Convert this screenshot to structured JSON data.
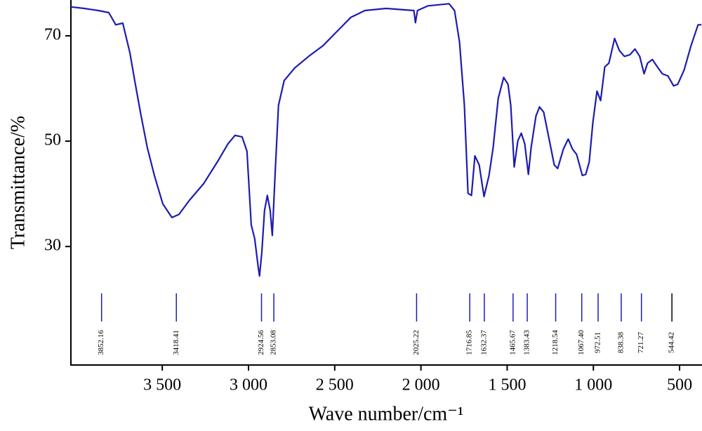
{
  "chart_data": {
    "type": "line",
    "xlabel": "Wave number/cm⁻¹",
    "ylabel": "Transmittance/%",
    "xlim": [
      4030,
      370
    ],
    "ylim": [
      7.5,
      76.8
    ],
    "xticks": [
      {
        "value": 3500,
        "label": "3 500"
      },
      {
        "value": 3000,
        "label": "3 000"
      },
      {
        "value": 2500,
        "label": "2 500"
      },
      {
        "value": 2000,
        "label": "2 000"
      },
      {
        "value": 1500,
        "label": "1 500"
      },
      {
        "value": 1000,
        "label": "1 000"
      },
      500
    ],
    "yticks": [
      30,
      50,
      70
    ],
    "color": "#1c1cb0",
    "x": [
      4030,
      3953,
      3871,
      3810,
      3770,
      3729,
      3688,
      3660,
      3627,
      3587,
      3546,
      3497,
      3444,
      3403,
      3342,
      3261,
      3180,
      3119,
      3078,
      3037,
      3009,
      2984,
      2964,
      2944,
      2936,
      2923,
      2907,
      2891,
      2874,
      2862,
      2846,
      2826,
      2793,
      2732,
      2651,
      2569,
      2488,
      2407,
      2325,
      2203,
      2041,
      2032,
      2020,
      1959,
      1837,
      1805,
      1776,
      1748,
      1727,
      1707,
      1687,
      1662,
      1634,
      1605,
      1581,
      1552,
      1520,
      1495,
      1479,
      1459,
      1438,
      1418,
      1398,
      1377,
      1361,
      1333,
      1312,
      1288,
      1259,
      1227,
      1207,
      1174,
      1146,
      1121,
      1097,
      1064,
      1044,
      1024,
      1003,
      979,
      958,
      934,
      910,
      877,
      849,
      820,
      788,
      759,
      731,
      706,
      686,
      658,
      629,
      600,
      568,
      535,
      511,
      474,
      434,
      393,
      373
    ],
    "y": [
      75.5,
      75.2,
      74.8,
      74.4,
      72.1,
      72.4,
      66.8,
      61.5,
      55.5,
      48.8,
      43.5,
      38.1,
      35.5,
      36.1,
      38.8,
      41.9,
      46.1,
      49.5,
      51.1,
      50.8,
      48.1,
      34.1,
      31.5,
      26.1,
      24.4,
      28.8,
      36.8,
      39.7,
      36.8,
      32.1,
      43.5,
      56.8,
      61.5,
      63.9,
      66.1,
      68.1,
      70.8,
      73.5,
      74.8,
      75.2,
      74.8,
      72.5,
      74.8,
      75.7,
      76.1,
      74.8,
      68.8,
      56.8,
      40.1,
      39.7,
      47.2,
      45.5,
      39.5,
      43.5,
      48.8,
      58.1,
      62.1,
      60.8,
      56.8,
      45.1,
      50.1,
      51.5,
      49.5,
      43.7,
      48.8,
      54.8,
      56.5,
      55.5,
      50.8,
      45.5,
      44.8,
      48.5,
      50.4,
      48.5,
      47.5,
      43.5,
      43.7,
      46.1,
      53.5,
      59.5,
      57.7,
      64.1,
      64.8,
      69.5,
      67.2,
      66.1,
      66.4,
      67.5,
      66.1,
      62.8,
      64.8,
      65.5,
      64.1,
      62.8,
      62.4,
      60.5,
      60.8,
      63.5,
      68.1,
      72.1,
      72.1
    ],
    "peaks": [
      3852.16,
      3418.41,
      2924.56,
      2853.08,
      2025.22,
      1716.85,
      1632.37,
      1465.67,
      1383.43,
      1218.54,
      1067.4,
      972.51,
      838.38,
      721.27,
      544.42
    ],
    "peak_labels": [
      "3852.16",
      "3418.41",
      "2924.56",
      "2853.08",
      "2025.22",
      "1716.85",
      "1632.37",
      "1465.67",
      "1383.43",
      "1218.54",
      "1067.40",
      "972.51",
      "838.38",
      "721.27",
      "544.42"
    ],
    "peak_colors": [
      "#1c1cb0",
      "#1c1cb0",
      "#1c1cb0",
      "#1c1cb0",
      "#1c1cb0",
      "#1c1cb0",
      "#1c1cb0",
      "#1c1cb0",
      "#1c1cb0",
      "#1c1cb0",
      "#1c1cb0",
      "#1c1cb0",
      "#1c1cb0",
      "#1c1cb0",
      "#000000"
    ]
  }
}
